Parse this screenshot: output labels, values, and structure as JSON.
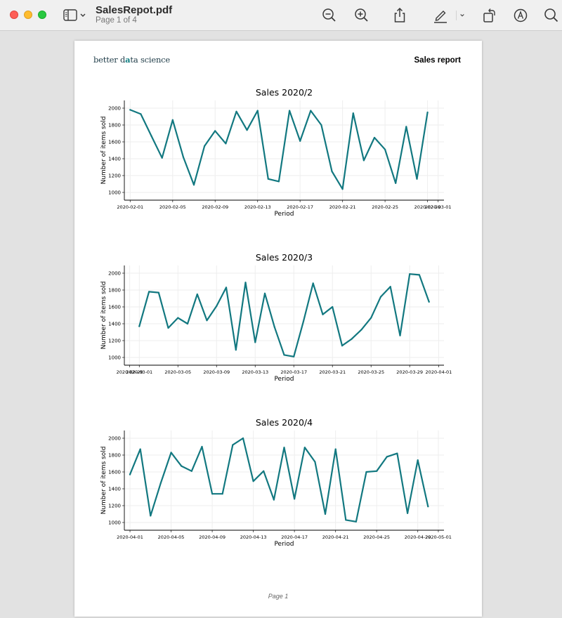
{
  "window": {
    "title": "SalesRepot.pdf",
    "subtitle": "Page 1 of 4"
  },
  "toolbar": {
    "icons": [
      "sidebar-icon",
      "chevron-down-icon",
      "zoom-out-icon",
      "zoom-in-icon",
      "share-icon",
      "markup-icon",
      "chevron-down-icon",
      "rotate-icon",
      "annotate-icon",
      "search-icon"
    ]
  },
  "colors": {
    "line": "#127880",
    "close": "#fe5f57",
    "minimize": "#febc2e",
    "maximize": "#28c840"
  },
  "page": {
    "logo_pre": "better d",
    "logo_accent": "a",
    "logo_post": "ta science",
    "report_title": "Sales report",
    "footer": "Page 1"
  },
  "chart_data": [
    {
      "type": "line",
      "title": "Sales 2020/2",
      "xlabel": "Period",
      "ylabel": "Number of items sold",
      "ylim": [
        1000,
        2000
      ],
      "yticks": [
        1000,
        1200,
        1400,
        1600,
        1800,
        2000
      ],
      "xticks": [
        "2020-02-01",
        "2020-02-05",
        "2020-02-09",
        "2020-02-13",
        "2020-02-17",
        "2020-02-21",
        "2020-02-25",
        "2020-02-29",
        "2020-03-01"
      ],
      "x": [
        "2020-02-01",
        "2020-02-02",
        "2020-02-03",
        "2020-02-04",
        "2020-02-05",
        "2020-02-06",
        "2020-02-07",
        "2020-02-08",
        "2020-02-09",
        "2020-02-10",
        "2020-02-11",
        "2020-02-12",
        "2020-02-13",
        "2020-02-14",
        "2020-02-15",
        "2020-02-16",
        "2020-02-17",
        "2020-02-18",
        "2020-02-19",
        "2020-02-20",
        "2020-02-21",
        "2020-02-22",
        "2020-02-23",
        "2020-02-24",
        "2020-02-25",
        "2020-02-26",
        "2020-02-27",
        "2020-02-28",
        "2020-02-29"
      ],
      "values": [
        1980,
        1930,
        1670,
        1410,
        1860,
        1420,
        1090,
        1550,
        1730,
        1580,
        1960,
        1740,
        1970,
        1160,
        1130,
        1970,
        1610,
        1970,
        1800,
        1250,
        1040,
        1940,
        1380,
        1650,
        1510,
        1110,
        1780,
        1160,
        1950
      ],
      "grid": true
    },
    {
      "type": "line",
      "title": "Sales 2020/3",
      "xlabel": "Period",
      "ylabel": "Number of items sold",
      "ylim": [
        1000,
        2000
      ],
      "yticks": [
        1000,
        1200,
        1400,
        1600,
        1800,
        2000
      ],
      "xticks": [
        "2020-02-29",
        "2020-03-01",
        "2020-03-05",
        "2020-03-09",
        "2020-03-13",
        "2020-03-17",
        "2020-03-21",
        "2020-03-25",
        "2020-03-29",
        "2020-04-01"
      ],
      "x": [
        "2020-03-01",
        "2020-03-02",
        "2020-03-03",
        "2020-03-04",
        "2020-03-05",
        "2020-03-06",
        "2020-03-07",
        "2020-03-08",
        "2020-03-09",
        "2020-03-10",
        "2020-03-11",
        "2020-03-12",
        "2020-03-13",
        "2020-03-14",
        "2020-03-15",
        "2020-03-16",
        "2020-03-17",
        "2020-03-18",
        "2020-03-19",
        "2020-03-20",
        "2020-03-21",
        "2020-03-22",
        "2020-03-23",
        "2020-03-24",
        "2020-03-25",
        "2020-03-26",
        "2020-03-27",
        "2020-03-28",
        "2020-03-29",
        "2020-03-30",
        "2020-03-31"
      ],
      "values": [
        1370,
        1780,
        1770,
        1350,
        1470,
        1400,
        1750,
        1440,
        1610,
        1830,
        1090,
        1890,
        1180,
        1760,
        1360,
        1030,
        1010,
        1430,
        1880,
        1510,
        1600,
        1140,
        1220,
        1330,
        1470,
        1720,
        1840,
        1260,
        1990,
        1980,
        1660
      ],
      "grid": true
    },
    {
      "type": "line",
      "title": "Sales 2020/4",
      "xlabel": "Period",
      "ylabel": "Number of items sold",
      "ylim": [
        1000,
        2000
      ],
      "yticks": [
        1000,
        1200,
        1400,
        1600,
        1800,
        2000
      ],
      "xticks": [
        "2020-04-01",
        "2020-04-05",
        "2020-04-09",
        "2020-04-13",
        "2020-04-17",
        "2020-04-21",
        "2020-04-25",
        "2020-04-29",
        "2020-05-01"
      ],
      "x": [
        "2020-04-01",
        "2020-04-02",
        "2020-04-03",
        "2020-04-04",
        "2020-04-05",
        "2020-04-06",
        "2020-04-07",
        "2020-04-08",
        "2020-04-09",
        "2020-04-10",
        "2020-04-11",
        "2020-04-12",
        "2020-04-13",
        "2020-04-14",
        "2020-04-15",
        "2020-04-16",
        "2020-04-17",
        "2020-04-18",
        "2020-04-19",
        "2020-04-20",
        "2020-04-21",
        "2020-04-22",
        "2020-04-23",
        "2020-04-24",
        "2020-04-25",
        "2020-04-26",
        "2020-04-27",
        "2020-04-28",
        "2020-04-29",
        "2020-04-30"
      ],
      "values": [
        1570,
        1870,
        1080,
        1470,
        1830,
        1670,
        1610,
        1900,
        1340,
        1340,
        1920,
        2000,
        1490,
        1610,
        1270,
        1890,
        1280,
        1890,
        1720,
        1100,
        1870,
        1030,
        1010,
        1600,
        1610,
        1780,
        1820,
        1110,
        1740,
        1190
      ],
      "grid": true
    }
  ]
}
